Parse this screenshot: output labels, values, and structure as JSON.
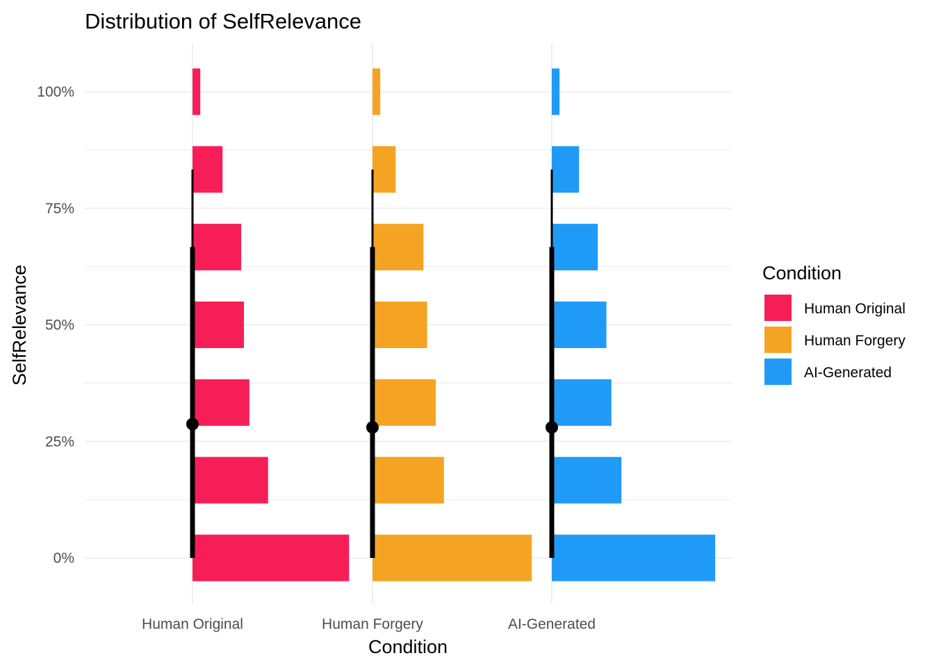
{
  "chart_data": {
    "type": "bar",
    "orientation": "horizontal-half-eye",
    "title": "Distribution of SelfRelevance",
    "xlabel": "Condition",
    "ylabel": "SelfRelevance",
    "categories": [
      "Human Original",
      "Human Forgery",
      "AI-Generated"
    ],
    "y_bins": [
      0,
      16.67,
      33.33,
      50,
      66.67,
      83.33,
      100
    ],
    "ylim": [
      -10,
      110
    ],
    "y_ticks": [
      {
        "value": 0,
        "label": "0%"
      },
      {
        "value": 25,
        "label": "25%"
      },
      {
        "value": 50,
        "label": "50%"
      },
      {
        "value": 75,
        "label": "75%"
      },
      {
        "value": 100,
        "label": "100%"
      }
    ],
    "series": [
      {
        "name": "Human Original",
        "color": "#F71E57",
        "proportions": [
          0.344,
          0.166,
          0.125,
          0.113,
          0.107,
          0.066,
          0.017
        ],
        "point": 28.7,
        "interval_inner": [
          0,
          66.7
        ],
        "interval_outer": [
          0,
          83.3
        ]
      },
      {
        "name": "Human Forgery",
        "color": "#F4A422",
        "proportions": [
          0.35,
          0.157,
          0.139,
          0.12,
          0.112,
          0.051,
          0.017
        ],
        "point": 28.0,
        "interval_inner": [
          0,
          66.7
        ],
        "interval_outer": [
          0,
          83.3
        ]
      },
      {
        "name": "AI-Generated",
        "color": "#209AF7",
        "proportions": [
          0.359,
          0.153,
          0.131,
          0.12,
          0.101,
          0.06,
          0.017
        ],
        "point": 28.0,
        "interval_inner": [
          0,
          66.7
        ],
        "interval_outer": [
          0,
          83.3
        ]
      }
    ],
    "legend": {
      "title": "Condition",
      "position": "right",
      "items": [
        {
          "label": "Human Original",
          "color": "#F71E57"
        },
        {
          "label": "Human Forgery",
          "color": "#F4A422"
        },
        {
          "label": "AI-Generated",
          "color": "#209AF7"
        }
      ]
    },
    "grid": true
  }
}
